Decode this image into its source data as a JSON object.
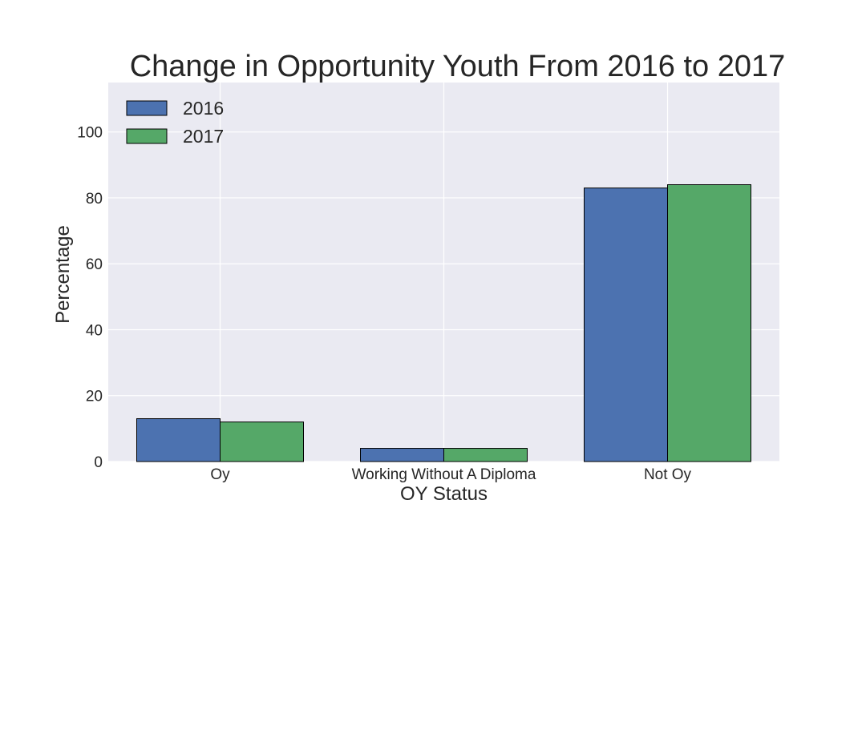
{
  "chart_data": {
    "type": "bar",
    "title": "Change in Opportunity Youth From 2016 to 2017",
    "xlabel": "OY Status",
    "ylabel": "Percentage",
    "categories": [
      "Oy",
      "Working Without A Diploma",
      "Not Oy"
    ],
    "series": [
      {
        "name": "2016",
        "color": "#4c72b0",
        "values": [
          13,
          4,
          83
        ]
      },
      {
        "name": "2017",
        "color": "#55a868",
        "values": [
          12,
          4,
          84
        ]
      }
    ],
    "ylim": [
      0,
      115
    ],
    "yticks": [
      0,
      20,
      40,
      60,
      80,
      100
    ],
    "grid": true,
    "legend_position": "top-left",
    "background_color": "#eaeaf2"
  }
}
